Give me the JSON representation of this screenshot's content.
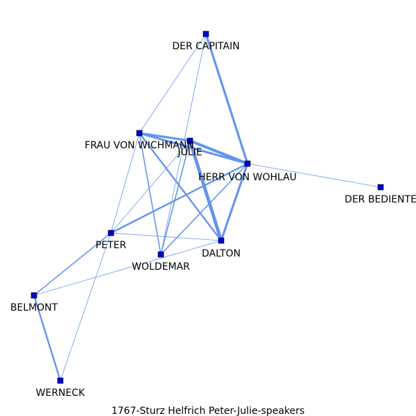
{
  "title": "1767-Sturz_Helfrich_Peter-Julie-speakers",
  "caption": "1767-Sturz  Helfrich  Peter-Julie-speakers",
  "colors": {
    "edge": "#6495ED",
    "node_fill": "#0000CD",
    "node_stroke": "#000000",
    "label": "#000000"
  },
  "nodes": [
    {
      "id": "capitain",
      "label": "DER CAPITAIN"
    },
    {
      "id": "wichmann",
      "label": "FRAU VON WICHMANN"
    },
    {
      "id": "julie",
      "label": "JULIE"
    },
    {
      "id": "wohlau",
      "label": "HERR VON WOHLAU"
    },
    {
      "id": "bediente",
      "label": "DER BEDIENTE"
    },
    {
      "id": "peter",
      "label": "PETER"
    },
    {
      "id": "dalton",
      "label": "DALTON"
    },
    {
      "id": "woldemar",
      "label": "WOLDEMAR"
    },
    {
      "id": "belmont",
      "label": "BELMONT"
    },
    {
      "id": "werneck",
      "label": "WERNECK"
    }
  ],
  "edges": [
    {
      "source": "capitain",
      "target": "wohlau",
      "weight": 4
    },
    {
      "source": "capitain",
      "target": "wichmann",
      "weight": 1
    },
    {
      "source": "capitain",
      "target": "woldemar",
      "weight": 1
    },
    {
      "source": "wichmann",
      "target": "julie",
      "weight": 4
    },
    {
      "source": "wichmann",
      "target": "wohlau",
      "weight": 4
    },
    {
      "source": "wichmann",
      "target": "dalton",
      "weight": 3
    },
    {
      "source": "wichmann",
      "target": "woldemar",
      "weight": 2
    },
    {
      "source": "wichmann",
      "target": "peter",
      "weight": 1
    },
    {
      "source": "julie",
      "target": "wohlau",
      "weight": 5
    },
    {
      "source": "julie",
      "target": "dalton",
      "weight": 6
    },
    {
      "source": "julie",
      "target": "peter",
      "weight": 1
    },
    {
      "source": "julie",
      "target": "woldemar",
      "weight": 2
    },
    {
      "source": "wohlau",
      "target": "dalton",
      "weight": 4
    },
    {
      "source": "wohlau",
      "target": "bediente",
      "weight": 1
    },
    {
      "source": "wohlau",
      "target": "peter",
      "weight": 3
    },
    {
      "source": "wohlau",
      "target": "woldemar",
      "weight": 2
    },
    {
      "source": "peter",
      "target": "dalton",
      "weight": 1
    },
    {
      "source": "peter",
      "target": "belmont",
      "weight": 2
    },
    {
      "source": "peter",
      "target": "werneck",
      "weight": 1
    },
    {
      "source": "belmont",
      "target": "dalton",
      "weight": 1
    },
    {
      "source": "belmont",
      "target": "werneck",
      "weight": 3
    }
  ]
}
